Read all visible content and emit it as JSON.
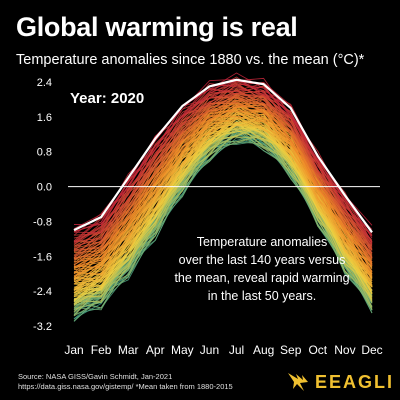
{
  "header": {
    "title": "Global warming is real",
    "subtitle": "Temperature anomalies since 1880 vs. the mean (°C)*"
  },
  "chart_data": {
    "type": "line",
    "title": "Global warming is real",
    "subtitle": "Temperature anomalies since 1880 vs. the mean (°C)*",
    "xlabel": "",
    "ylabel": "",
    "categories": [
      "Jan",
      "Feb",
      "Mar",
      "Apr",
      "May",
      "Jun",
      "Jul",
      "Aug",
      "Sep",
      "Oct",
      "Nov",
      "Dec"
    ],
    "y_ticks": [
      "2.4",
      "1.6",
      "0.8",
      "0.0",
      "-0.8",
      "-1.6",
      "-2.4",
      "-3.2"
    ],
    "y_tick_values": [
      2.4,
      1.6,
      0.8,
      0.0,
      -0.8,
      -1.6,
      -2.4,
      -3.2
    ],
    "ylim": [
      -3.2,
      2.4
    ],
    "year_label": "Year: 2020",
    "annotation": "Temperature anomalies over the last 140 years versus the mean, reveal rapid warming in the last 50 years.",
    "annotation_lines": [
      "Temperature anomalies",
      "over the last 140 years versus",
      "the mean, reveal rapid warming",
      "in the last 50 years."
    ],
    "grid": false,
    "zero_line": true,
    "series_years": [
      1880,
      2020
    ],
    "series_highlight_year": 2020,
    "series": [
      {
        "name": "2020",
        "values": [
          -1.0,
          -0.7,
          0.2,
          1.1,
          1.85,
          2.3,
          2.45,
          2.35,
          1.8,
          0.7,
          -0.2,
          -1.05
        ]
      },
      {
        "name": "1880",
        "values": [
          -2.85,
          -2.6,
          -1.9,
          -1.0,
          0.0,
          0.8,
          1.2,
          1.05,
          0.4,
          -0.7,
          -1.8,
          -2.7
        ]
      }
    ],
    "colors": {
      "2020": "#ffffff",
      "recent": "#c0203a",
      "middle": "#f08c28",
      "mid_old": "#f0d040",
      "oldest": "#3ca08a",
      "zero_line": "#ffffff"
    }
  },
  "footer": {
    "source_line1": "Source: NASA GISS/Gavin Schmidt, Jan-2021",
    "source_line2": "https://data.giss.nasa.gov/gistemp/ *Mean taken from 1880-2015",
    "logo_text": "EEAGLI",
    "logo_icon": "eagle-icon"
  }
}
